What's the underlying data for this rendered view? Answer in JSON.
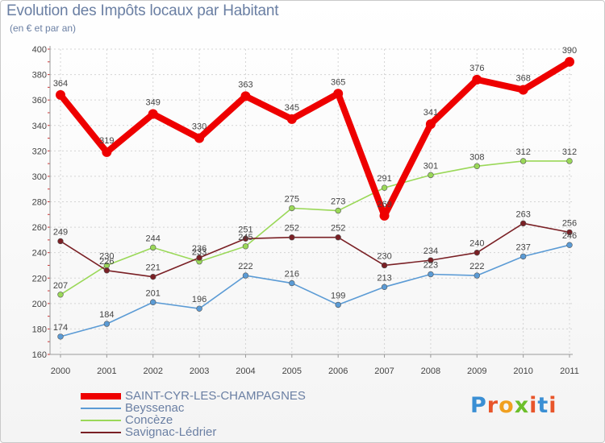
{
  "header": {
    "title": "Evolution des Impôts locaux par Habitant",
    "subtitle": "(en € et par an)"
  },
  "logo": {
    "text": "Proxiti",
    "letter_colors": [
      "#3a8fd4",
      "#e8552a",
      "#f0a020",
      "#6cbf2a",
      "#e8552a",
      "#3a8fd4",
      "#e8552a"
    ]
  },
  "chart_data": {
    "type": "line",
    "title": "Evolution des Impôts locaux par Habitant",
    "subtitle": "(en € et par an)",
    "xlabel": "",
    "ylabel": "",
    "categories": [
      "2000",
      "2001",
      "2002",
      "2003",
      "2004",
      "2005",
      "2006",
      "2007",
      "2008",
      "2009",
      "2010",
      "2011"
    ],
    "ylim": [
      160,
      400
    ],
    "yticks": [
      160,
      180,
      200,
      220,
      240,
      260,
      280,
      300,
      320,
      340,
      360,
      380,
      400
    ],
    "grid": true,
    "legend_position": "bottom-left",
    "series": [
      {
        "name": "SAINT-CYR-LES-CHAMPAGNES",
        "color": "#ee0000",
        "values": [
          364,
          319,
          349,
          330,
          363,
          345,
          365,
          269,
          341,
          376,
          368,
          390
        ],
        "labels": [
          "364",
          "319",
          "349",
          "330",
          "363",
          "345",
          "365",
          "269",
          "341",
          "376",
          "368",
          "390"
        ]
      },
      {
        "name": "Beyssenac",
        "color": "#5b9bd5",
        "values": [
          174,
          184,
          201,
          196,
          222,
          216,
          199,
          213,
          223,
          222,
          237,
          246
        ],
        "labels": [
          "174",
          "184",
          "201",
          "196",
          "222",
          "216",
          "199",
          "213",
          "223",
          "222",
          "237",
          "246"
        ]
      },
      {
        "name": "Concèze",
        "color": "#9ad858",
        "values": [
          207,
          230,
          244,
          233,
          245,
          275,
          273,
          291,
          301,
          308,
          312,
          312
        ],
        "labels": [
          "207",
          "230",
          "244",
          "233",
          "245",
          "275",
          "273",
          "291",
          "301",
          "308",
          "312",
          "312"
        ]
      },
      {
        "name": "Savignac-Lédrier",
        "color": "#7a2025",
        "values": [
          249,
          226,
          221,
          236,
          251,
          252,
          252,
          230,
          234,
          240,
          263,
          256
        ],
        "labels": [
          "249",
          "226",
          "221",
          "236",
          "251",
          "252",
          "252",
          "230",
          "234",
          "240",
          "263",
          "256"
        ]
      }
    ]
  }
}
